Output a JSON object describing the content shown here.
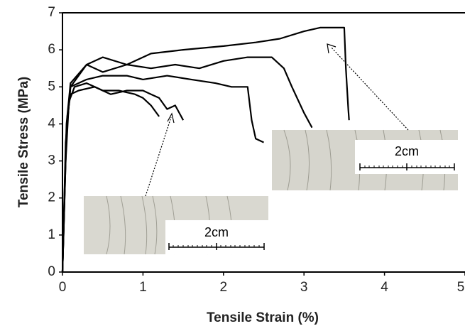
{
  "chart_data": {
    "type": "line",
    "x_label": "Tensile Strain (%)",
    "y_label": "Tensile Stress (MPa)",
    "xlim": [
      0,
      5
    ],
    "ylim": [
      0,
      7
    ],
    "xticks": [
      0,
      1,
      2,
      3,
      4,
      5
    ],
    "yticks": [
      0,
      1,
      2,
      3,
      4,
      5,
      6,
      7
    ],
    "annotations": [
      "2cm",
      "2cm"
    ],
    "series": [
      {
        "color": "#000000",
        "x": [
          0,
          0.03,
          0.06,
          0.1,
          0.2,
          0.4,
          0.6,
          0.8,
          1.0,
          1.1,
          1.2,
          1.3,
          1.4,
          1.5
        ],
        "values": [
          0,
          2.5,
          4.2,
          4.8,
          4.9,
          5.0,
          4.8,
          4.9,
          4.9,
          4.8,
          4.7,
          4.4,
          4.5,
          4.1
        ]
      },
      {
        "color": "#000000",
        "x": [
          0,
          0.04,
          0.08,
          0.15,
          0.3,
          0.5,
          0.7,
          0.9,
          1.0,
          1.1,
          1.2
        ],
        "values": [
          0,
          3.0,
          4.6,
          5.0,
          5.1,
          4.9,
          4.9,
          4.8,
          4.7,
          4.5,
          4.2
        ]
      },
      {
        "color": "#000000",
        "x": [
          0,
          0.04,
          0.1,
          0.3,
          0.5,
          0.8,
          1.0,
          1.3,
          1.6,
          1.9,
          2.1,
          2.3,
          2.35,
          2.4,
          2.5
        ],
        "values": [
          0,
          3.5,
          5.0,
          5.2,
          5.3,
          5.3,
          5.2,
          5.3,
          5.2,
          5.1,
          5.0,
          5.0,
          4.1,
          3.6,
          3.5
        ]
      },
      {
        "color": "#000000",
        "x": [
          0,
          0.05,
          0.1,
          0.3,
          0.5,
          0.8,
          1.1,
          1.4,
          1.7,
          2.0,
          2.3,
          2.6,
          2.75,
          2.85,
          3.0,
          3.1
        ],
        "values": [
          0,
          3.8,
          5.0,
          5.6,
          5.4,
          5.6,
          5.5,
          5.6,
          5.5,
          5.7,
          5.8,
          5.8,
          5.5,
          5.0,
          4.3,
          3.9
        ]
      },
      {
        "color": "#000000",
        "x": [
          0,
          0.05,
          0.1,
          0.3,
          0.5,
          0.8,
          1.1,
          1.5,
          2.0,
          2.4,
          2.7,
          3.0,
          3.2,
          3.4,
          3.5,
          3.52,
          3.55,
          3.56
        ],
        "values": [
          0,
          4.0,
          5.1,
          5.6,
          5.8,
          5.6,
          5.9,
          6.0,
          6.1,
          6.2,
          6.3,
          6.5,
          6.6,
          6.6,
          6.6,
          5.5,
          4.4,
          4.1
        ]
      }
    ]
  }
}
